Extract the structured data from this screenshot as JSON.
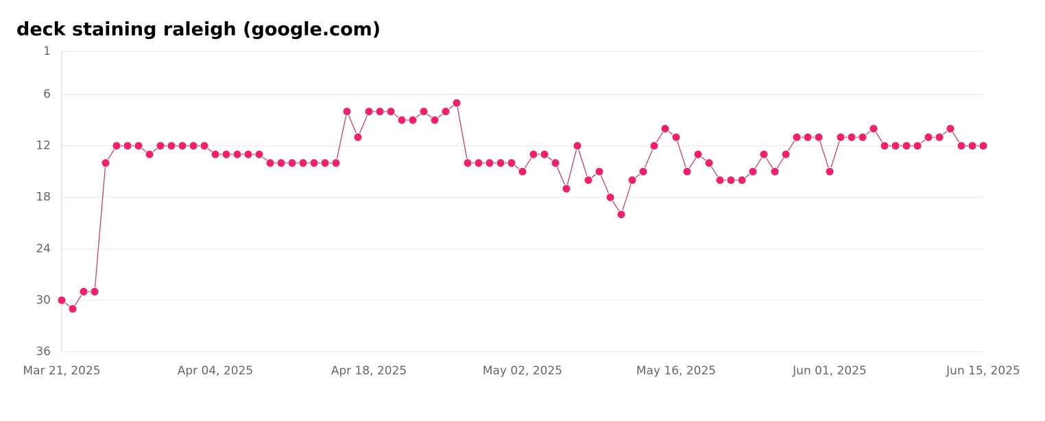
{
  "chart_data": {
    "type": "line",
    "title": "deck staining raleigh (google.com)",
    "categories": [
      "Mar 21, 2025",
      null,
      null,
      null,
      null,
      null,
      null,
      null,
      null,
      null,
      null,
      null,
      null,
      null,
      "Apr 04, 2025",
      null,
      null,
      null,
      null,
      null,
      null,
      null,
      null,
      null,
      null,
      null,
      null,
      null,
      "Apr 18, 2025",
      null,
      null,
      null,
      null,
      null,
      null,
      null,
      null,
      null,
      null,
      null,
      null,
      null,
      "May 02, 2025",
      null,
      null,
      null,
      null,
      null,
      null,
      null,
      null,
      null,
      null,
      null,
      null,
      null,
      "May 16, 2025",
      null,
      null,
      null,
      null,
      null,
      null,
      null,
      null,
      null,
      null,
      null,
      null,
      null,
      "Jun 01, 2025",
      null,
      null,
      null,
      null,
      null,
      null,
      null,
      null,
      null,
      null,
      null,
      null,
      null,
      "Jun 15, 2025"
    ],
    "series": [
      {
        "color": "#f0206b",
        "line_color": "#c2406e",
        "values": [
          30,
          31,
          29,
          29,
          14,
          12,
          12,
          12,
          13,
          12,
          12,
          12,
          12,
          12,
          13,
          13,
          13,
          13,
          13,
          14,
          14,
          14,
          14,
          14,
          14,
          14,
          8,
          11,
          8,
          8,
          8,
          9,
          9,
          8,
          9,
          8,
          7,
          14,
          14,
          14,
          14,
          14,
          15,
          13,
          13,
          14,
          17,
          12,
          16,
          15,
          18,
          20,
          16,
          15,
          12,
          10,
          11,
          15,
          13,
          14,
          16,
          16,
          16,
          15,
          13,
          15,
          13,
          11,
          11,
          11,
          15,
          11,
          11,
          11,
          10,
          12,
          12,
          12,
          12,
          11,
          11,
          10,
          12,
          12,
          12
        ]
      }
    ],
    "ylim": [
      1,
      36
    ],
    "yticks": [
      1,
      6,
      12,
      18,
      24,
      30,
      36
    ],
    "invert_y": true,
    "grid": true
  }
}
